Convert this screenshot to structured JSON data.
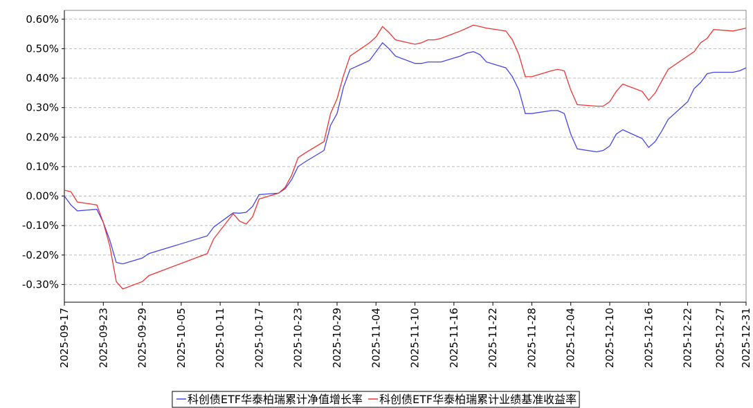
{
  "chart_data": {
    "type": "line",
    "x": [
      "2025-09-17",
      "2025-09-18",
      "2025-09-19",
      "2025-09-22",
      "2025-09-23",
      "2025-09-24",
      "2025-09-25",
      "2025-09-26",
      "2025-09-29",
      "2025-09-30",
      "2025-10-09",
      "2025-10-10",
      "2025-10-13",
      "2025-10-14",
      "2025-10-15",
      "2025-10-16",
      "2025-10-17",
      "2025-10-20",
      "2025-10-21",
      "2025-10-22",
      "2025-10-23",
      "2025-10-24",
      "2025-10-27",
      "2025-10-28",
      "2025-10-29",
      "2025-10-30",
      "2025-10-31",
      "2025-11-03",
      "2025-11-04",
      "2025-11-05",
      "2025-11-06",
      "2025-11-07",
      "2025-11-10",
      "2025-11-11",
      "2025-11-12",
      "2025-11-13",
      "2025-11-14",
      "2025-11-17",
      "2025-11-18",
      "2025-11-19",
      "2025-11-20",
      "2025-11-21",
      "2025-11-24",
      "2025-11-25",
      "2025-11-26",
      "2025-11-27",
      "2025-11-28",
      "2025-12-01",
      "2025-12-02",
      "2025-12-03",
      "2025-12-04",
      "2025-12-05",
      "2025-12-08",
      "2025-12-09",
      "2025-12-10",
      "2025-12-11",
      "2025-12-12",
      "2025-12-15",
      "2025-12-16",
      "2025-12-17",
      "2025-12-18",
      "2025-12-19",
      "2025-12-22",
      "2025-12-23",
      "2025-12-24",
      "2025-12-25",
      "2025-12-26",
      "2025-12-29",
      "2025-12-30",
      "2025-12-31"
    ],
    "series": [
      {
        "name": "科创债ETF华泰柏瑞累计净值增长率",
        "color": "#4444ee",
        "values": [
          0.0,
          -0.03,
          -0.05,
          -0.045,
          -0.09,
          -0.15,
          -0.225,
          -0.23,
          -0.21,
          -0.195,
          -0.135,
          -0.105,
          -0.057,
          -0.058,
          -0.055,
          -0.035,
          0.005,
          0.01,
          0.025,
          0.055,
          0.1,
          0.115,
          0.155,
          0.24,
          0.28,
          0.37,
          0.43,
          0.46,
          0.49,
          0.52,
          0.5,
          0.475,
          0.45,
          0.45,
          0.455,
          0.455,
          0.455,
          0.475,
          0.485,
          0.49,
          0.48,
          0.455,
          0.435,
          0.405,
          0.36,
          0.28,
          0.28,
          0.29,
          0.29,
          0.28,
          0.21,
          0.16,
          0.15,
          0.155,
          0.17,
          0.21,
          0.225,
          0.195,
          0.165,
          0.185,
          0.22,
          0.26,
          0.32,
          0.365,
          0.385,
          0.415,
          0.42,
          0.42,
          0.425,
          0.435
        ]
      },
      {
        "name": "科创债ETF华泰柏瑞累计业绩基准收益率",
        "color": "#ee3333",
        "values": [
          0.02,
          0.015,
          -0.02,
          -0.03,
          -0.09,
          -0.17,
          -0.29,
          -0.315,
          -0.29,
          -0.27,
          -0.195,
          -0.145,
          -0.06,
          -0.085,
          -0.095,
          -0.07,
          -0.01,
          0.01,
          0.03,
          0.07,
          0.13,
          0.145,
          0.185,
          0.28,
          0.33,
          0.41,
          0.475,
          0.52,
          0.54,
          0.575,
          0.555,
          0.53,
          0.515,
          0.52,
          0.53,
          0.53,
          0.535,
          0.56,
          0.57,
          0.58,
          0.575,
          0.57,
          0.56,
          0.53,
          0.48,
          0.405,
          0.405,
          0.425,
          0.43,
          0.425,
          0.36,
          0.31,
          0.305,
          0.305,
          0.32,
          0.355,
          0.38,
          0.355,
          0.325,
          0.35,
          0.39,
          0.43,
          0.475,
          0.49,
          0.52,
          0.535,
          0.565,
          0.56,
          0.565,
          0.57
        ]
      }
    ],
    "xlim": [
      "2025-09-17",
      "2025-12-31"
    ],
    "xticks": [
      "2025-09-17",
      "2025-09-23",
      "2025-09-29",
      "2025-10-05",
      "2025-10-11",
      "2025-10-17",
      "2025-10-23",
      "2025-10-29",
      "2025-11-04",
      "2025-11-10",
      "2025-11-16",
      "2025-11-22",
      "2025-11-28",
      "2025-12-04",
      "2025-12-10",
      "2025-12-16",
      "2025-12-22",
      "2025-12-27",
      "2025-12-31"
    ],
    "ylim": [
      -0.36,
      0.63
    ],
    "yticks": [
      {
        "value": -0.3,
        "label": "-0.30%"
      },
      {
        "value": -0.2,
        "label": "-0.20%"
      },
      {
        "value": -0.1,
        "label": "-0.10%"
      },
      {
        "value": 0,
        "label": "0.00%"
      },
      {
        "value": 0.1,
        "label": "0.10%"
      },
      {
        "value": 0.2,
        "label": "0.20%"
      },
      {
        "value": 0.3,
        "label": "0.30%"
      },
      {
        "value": 0.4,
        "label": "0.40%"
      },
      {
        "value": 0.5,
        "label": "0.50%"
      },
      {
        "value": 0.6,
        "label": "0.60%"
      }
    ],
    "grid": true,
    "legend": "bottom"
  }
}
